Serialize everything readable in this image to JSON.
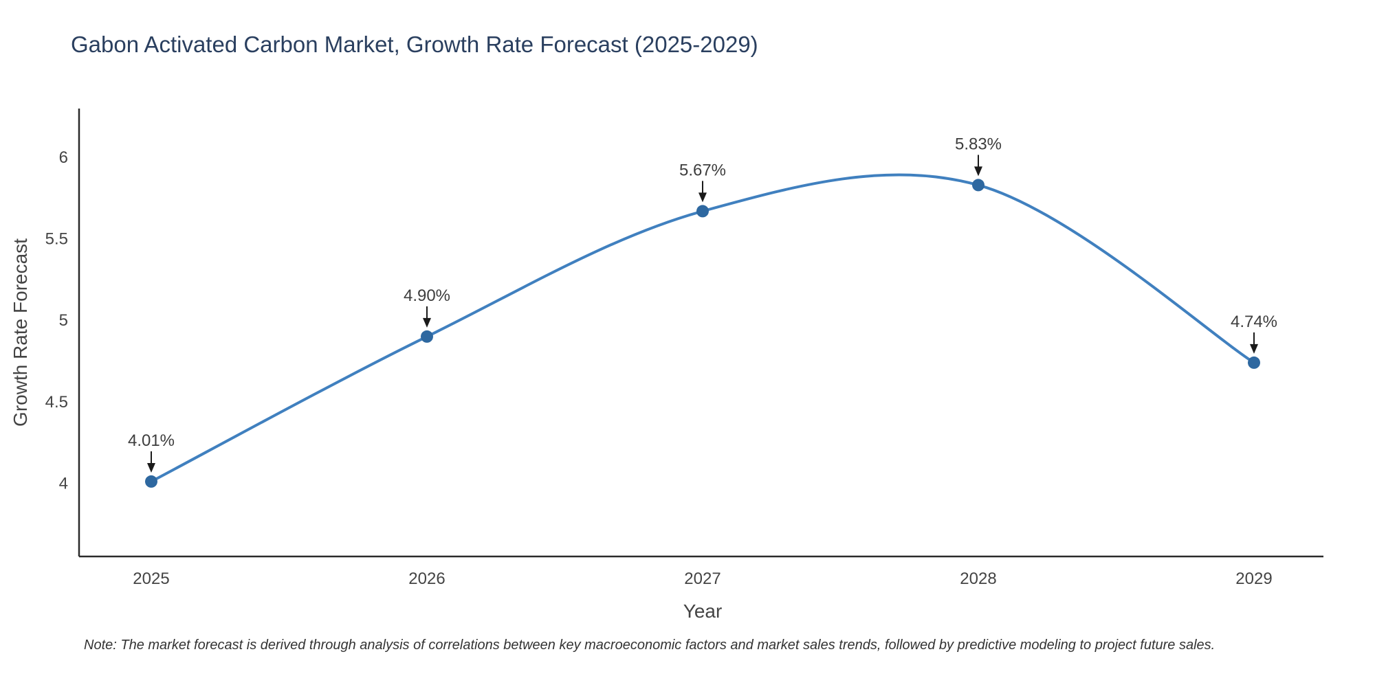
{
  "note": "Note: The market forecast is derived through analysis of correlations between key macroeconomic factors and market sales trends, followed by predictive modeling to project future sales.",
  "chart_data": {
    "type": "line",
    "line_shape": "spline",
    "title": "Gabon Activated Carbon Market, Growth Rate Forecast (2025-2029)",
    "xlabel": "Year",
    "ylabel": "Growth Rate Forecast",
    "categories": [
      "2025",
      "2026",
      "2027",
      "2028",
      "2029"
    ],
    "values": [
      4.01,
      4.9,
      5.67,
      5.83,
      4.74
    ],
    "point_labels": [
      "4.01%",
      "4.90%",
      "5.67%",
      "5.83%",
      "4.74%"
    ],
    "y_ticks": [
      4,
      4.5,
      5,
      5.5,
      6
    ],
    "y_tick_labels": [
      "4",
      "4.5",
      "5",
      "5.5",
      "6"
    ],
    "ylim": [
      3.55,
      6.3
    ],
    "grid": false,
    "legend": "none",
    "markers": true,
    "annotations_arrow": true,
    "colors": {
      "line": "#4080bf",
      "marker": "#2e68a0",
      "axis": "#2a2a2a",
      "tick": "#444444",
      "axis_title": "#444444",
      "title": "#2a3f5f",
      "annotation_text": "#3d3d3d",
      "annotation_arrow": "#1a1a1a",
      "background": "#ffffff"
    }
  }
}
